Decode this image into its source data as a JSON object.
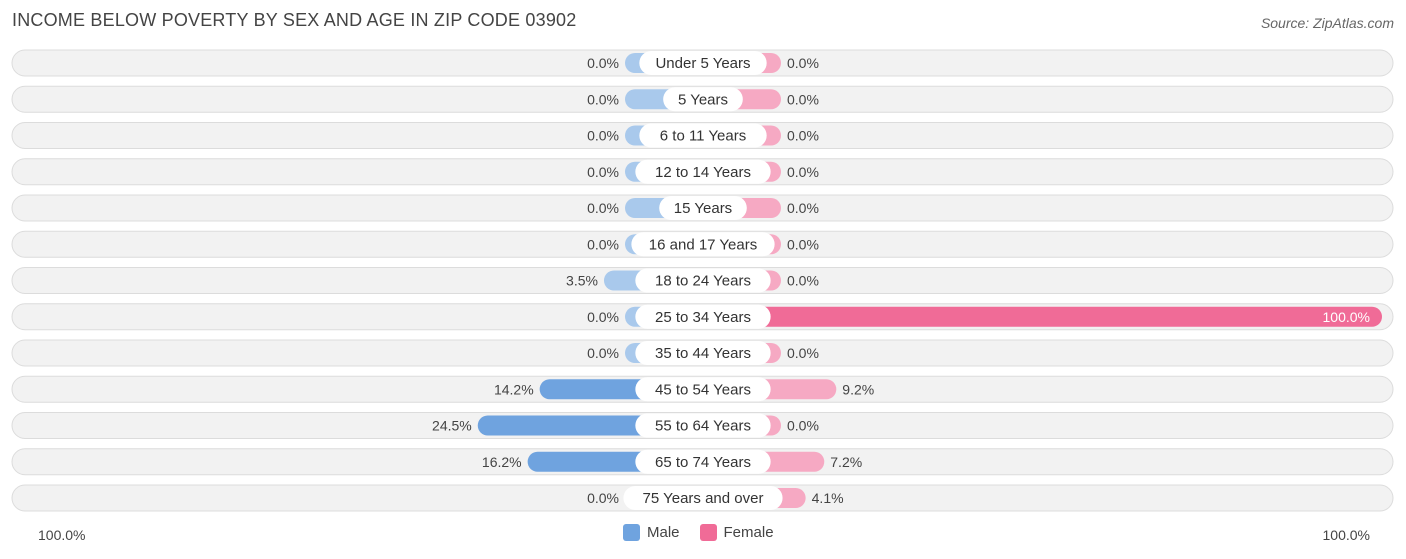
{
  "title": "INCOME BELOW POVERTY BY SEX AND AGE IN ZIP CODE 03902",
  "source": "Source: ZipAtlas.com",
  "colors": {
    "male": "#a9c9ec",
    "male_strong": "#6fa3df",
    "female": "#f6a9c3",
    "female_strong": "#f06b97"
  },
  "chart_data": {
    "type": "bar",
    "orientation": "horizontal-diverging",
    "categories": [
      "Under 5 Years",
      "5 Years",
      "6 to 11 Years",
      "12 to 14 Years",
      "15 Years",
      "16 and 17 Years",
      "18 to 24 Years",
      "25 to 34 Years",
      "35 to 44 Years",
      "45 to 54 Years",
      "55 to 64 Years",
      "65 to 74 Years",
      "75 Years and over"
    ],
    "series": [
      {
        "name": "Male",
        "values": [
          0.0,
          0.0,
          0.0,
          0.0,
          0.0,
          0.0,
          3.5,
          0.0,
          0.0,
          14.2,
          24.5,
          16.2,
          0.0
        ]
      },
      {
        "name": "Female",
        "values": [
          0.0,
          0.0,
          0.0,
          0.0,
          0.0,
          0.0,
          0.0,
          100.0,
          0.0,
          9.2,
          0.0,
          7.2,
          4.1
        ]
      }
    ],
    "value_labels": {
      "male": [
        "0.0%",
        "0.0%",
        "0.0%",
        "0.0%",
        "0.0%",
        "0.0%",
        "3.5%",
        "0.0%",
        "0.0%",
        "14.2%",
        "24.5%",
        "16.2%",
        "0.0%"
      ],
      "female": [
        "0.0%",
        "0.0%",
        "0.0%",
        "0.0%",
        "0.0%",
        "0.0%",
        "0.0%",
        "100.0%",
        "0.0%",
        "9.2%",
        "0.0%",
        "7.2%",
        "4.1%"
      ]
    },
    "xlim": [
      0,
      100
    ],
    "axis_labels": {
      "left": "100.0%",
      "right": "100.0%"
    },
    "legend": {
      "position": "bottom-center",
      "items": [
        "Male",
        "Female"
      ]
    }
  }
}
